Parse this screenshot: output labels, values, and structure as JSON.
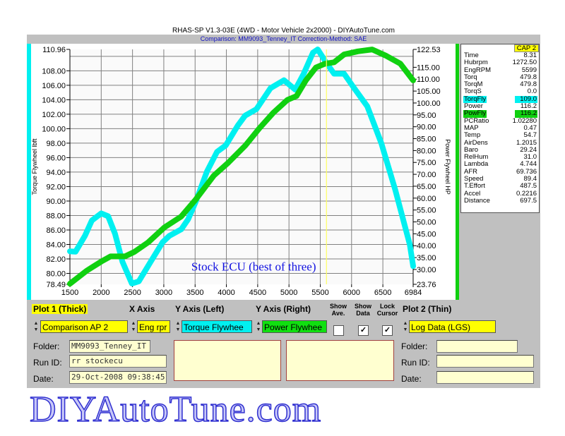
{
  "window": {
    "title": "RHAS-SP  V1.3-03E  (4WD - Motor Vehicle 2x2000) - DIYAutoTune.com",
    "subtitle": "Comparison: MM9093_Tenney_IT    Correction-Method: SAE"
  },
  "colors": {
    "torque": "#00f0f0",
    "power": "#10d010",
    "cursor": "#ffff60",
    "highlight": "#ffff00",
    "annotation": "#1010e0"
  },
  "chart_data": {
    "type": "line",
    "xlabel": "",
    "ylabel": "Torque Flywheel lbft",
    "y2label": "Power Flywheel HP",
    "xlim": [
      1500,
      6984
    ],
    "ylim": [
      78.49,
      110.96
    ],
    "y2lim": [
      23.76,
      122.53
    ],
    "x_ticks": [
      "1500",
      "2000",
      "2500",
      "3000",
      "3500",
      "4000",
      "4500",
      "5000",
      "5500",
      "6000",
      "6500",
      "6984"
    ],
    "y_ticks": [
      "110.96",
      "108.00",
      "106.00",
      "104.00",
      "102.00",
      "100.00",
      "98.00",
      "96.00",
      "94.00",
      "92.00",
      "90.00",
      "88.00",
      "86.00",
      "84.00",
      "82.00",
      "80.00",
      "78.49"
    ],
    "y2_ticks": [
      "122.53",
      "115.00",
      "110.00",
      "105.00",
      "100.00",
      "95.00",
      "90.00",
      "85.00",
      "80.00",
      "75.00",
      "70.00",
      "65.00",
      "60.00",
      "55.00",
      "50.00",
      "45.00",
      "40.00",
      "35.00",
      "30.00",
      "23.76"
    ],
    "grid": true,
    "cursor_x": 5599,
    "annotation": "Stock ECU (best of three)",
    "series": [
      {
        "axis": "left",
        "color": "#00f0f0",
        "x": [
          1500,
          1590,
          1740,
          1850,
          2000,
          2110,
          2220,
          2340,
          2490,
          2600,
          2790,
          2980,
          3090,
          3280,
          3390,
          3510,
          3690,
          3850,
          3990,
          4180,
          4300,
          4480,
          4705,
          4920,
          5100,
          5235,
          5383,
          5460,
          5575,
          5720,
          5880,
          6025,
          6250,
          6475,
          6700,
          6930,
          6984
        ],
        "y": [
          83.05,
          83.0,
          85.2,
          87.3,
          88.3,
          87.9,
          85.5,
          81.6,
          78.6,
          78.9,
          81.6,
          84.3,
          85.2,
          86.1,
          87.5,
          89.9,
          94.1,
          96.8,
          97.7,
          100.4,
          101.8,
          102.7,
          105.6,
          106.7,
          105.4,
          107.6,
          110.5,
          110.96,
          109.4,
          107.6,
          107.6,
          105.8,
          103.1,
          98.0,
          91.5,
          84.0,
          81.0
        ]
      },
      {
        "axis": "right",
        "color": "#10d010",
        "x": [
          1500,
          1770,
          2000,
          2150,
          2380,
          2530,
          2750,
          3010,
          3280,
          3510,
          3800,
          4030,
          4300,
          4525,
          4750,
          4975,
          5120,
          5270,
          5430,
          5575,
          5720,
          5880,
          6100,
          6330,
          6555,
          6780,
          6984
        ],
        "y": [
          24.0,
          29.5,
          33.3,
          35.5,
          35.5,
          37.4,
          41.4,
          47.7,
          52.3,
          59.4,
          69.5,
          74.9,
          82.0,
          89.3,
          95.9,
          101.3,
          102.9,
          109.5,
          114.9,
          116.5,
          117.1,
          120.4,
          121.7,
          122.5,
          119.8,
          116.5,
          109.5
        ]
      }
    ]
  },
  "readout": {
    "header": "CAP 2",
    "rows": [
      {
        "label": "Time",
        "value": "8.31"
      },
      {
        "label": "Hubrpm",
        "value": "1272.50"
      },
      {
        "label": "EngRPM",
        "value": "5599"
      },
      {
        "label": "Torq",
        "value": "479.8"
      },
      {
        "label": "TorqM",
        "value": "479.8"
      },
      {
        "label": "TorqS",
        "value": "0.0"
      },
      {
        "label": "TorqFly",
        "value": "109.0",
        "hl": "#00f0f0"
      },
      {
        "label": "Power",
        "value": "116.2"
      },
      {
        "label": "PowFly",
        "value": "116.2",
        "hl": "#10d010"
      },
      {
        "label": "PCRatio",
        "value": "1.02280"
      },
      {
        "label": "MAP",
        "value": "0.47"
      },
      {
        "label": "Temp",
        "value": "54.7"
      },
      {
        "label": "AirDens",
        "value": "1.2015"
      },
      {
        "label": "Baro",
        "value": "29.24"
      },
      {
        "label": "RelHum",
        "value": "31.0"
      },
      {
        "label": "Lambda",
        "value": "4.744"
      },
      {
        "label": "AFR",
        "value": "69.736"
      },
      {
        "label": "Speed",
        "value": "89.4"
      },
      {
        "label": "T.Effort",
        "value": "487.5"
      },
      {
        "label": "Accel",
        "value": "0.2216"
      },
      {
        "label": "Distance",
        "value": "697.5"
      }
    ]
  },
  "controls": {
    "plot1_label": "Plot 1 (Thick)",
    "xaxis_label": "X Axis",
    "yleft_label": "Y Axis (Left)",
    "yright_label": "Y Axis (Right)",
    "show_ave_label": "Show Ave.",
    "show_data_label": "Show Data",
    "lock_cursor_label": "Lock Cursor",
    "plot2_label": "Plot 2 (Thin)",
    "plot1_value": "Comparison AP 2",
    "xaxis_value": "Eng rpr",
    "yleft_value": "Torque Flywhee",
    "yright_value": "Power Flywhee",
    "plot2_value": "Log Data (LGS)",
    "show_ave": false,
    "show_data": true,
    "lock_cursor": true,
    "check_mark": "✓",
    "folder_label": "Folder:",
    "runid_label": "Run ID:",
    "date_label": "Date:",
    "plot1_folder": "MM9093_Tenney_IT",
    "plot1_runid": "rr stockecu",
    "plot1_date": "29-Oct-2008  09:38:45",
    "plot2_folder": "",
    "plot2_runid": "",
    "plot2_date": ""
  },
  "watermark": "DIYAutoTune.com"
}
